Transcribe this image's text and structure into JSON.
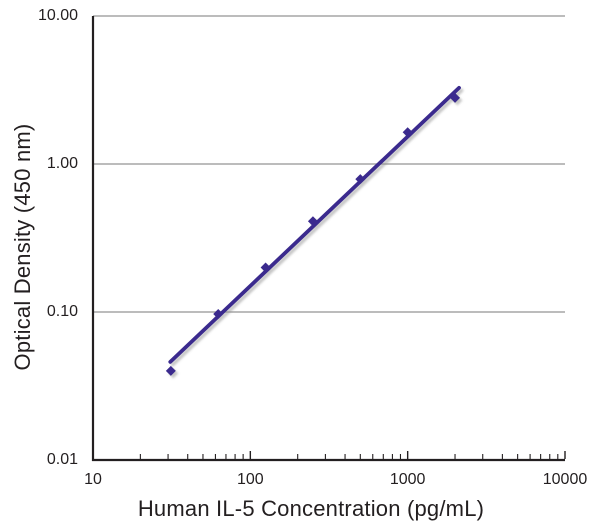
{
  "chart_data": {
    "type": "scatter",
    "title": "",
    "xlabel": "Human IL-5 Concentration (pg/mL)",
    "ylabel": "Optical Density (450 nm)",
    "x_scale": "log",
    "y_scale": "log",
    "xlim": [
      10,
      10000
    ],
    "ylim": [
      0.01,
      10
    ],
    "grid": {
      "horizontal_major": true,
      "vertical": false,
      "color": "#a6a6a6"
    },
    "legend": "none",
    "axis_color": "#231f20",
    "background": "#ffffff",
    "x_ticks": [
      {
        "value": 10,
        "label": "10"
      },
      {
        "value": 100,
        "label": "100"
      },
      {
        "value": 1000,
        "label": "1000"
      },
      {
        "value": 10000,
        "label": "10000"
      }
    ],
    "y_ticks": [
      {
        "value": 10,
        "label": "10.00"
      },
      {
        "value": 1,
        "label": "1.00"
      },
      {
        "value": 0.1,
        "label": "0.10"
      },
      {
        "value": 0.01,
        "label": "0.01"
      }
    ],
    "series": [
      {
        "marker": "diamond",
        "color": "#3a2b8e",
        "x": [
          31.25,
          62.5,
          125,
          250,
          500,
          1000,
          2000
        ],
        "y": [
          0.04,
          0.097,
          0.2,
          0.41,
          0.79,
          1.64,
          2.8
        ]
      }
    ],
    "trendline": {
      "x1": 31,
      "y1": 0.046,
      "x2": 2120,
      "y2": 3.27,
      "color": "#3a2b8e",
      "stroke_width": 3.8
    }
  }
}
